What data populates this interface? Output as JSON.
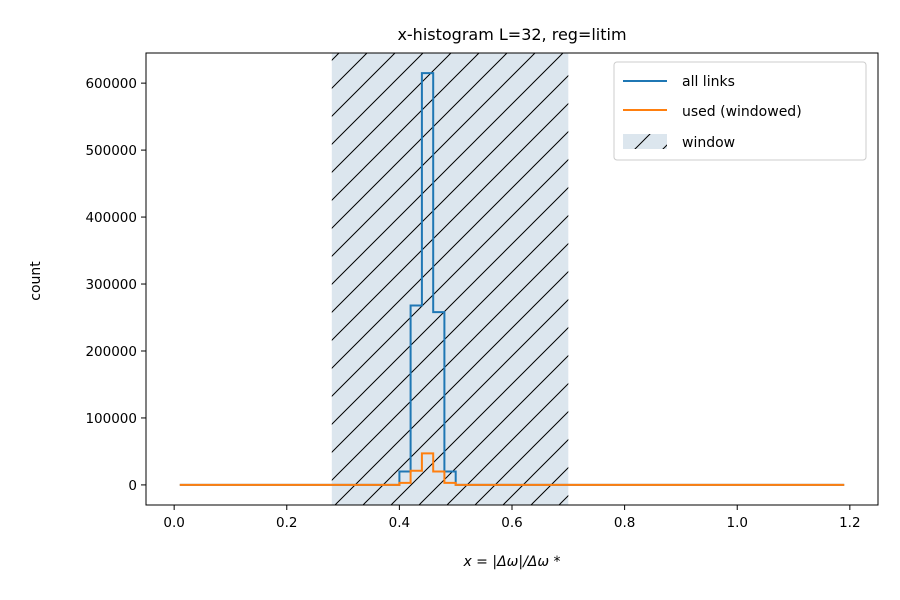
{
  "chart_data": {
    "type": "histogram",
    "title": "x-histogram L=32, reg=litim",
    "xlabel": "x = |Δω|/Δω *",
    "ylabel": "count",
    "xlim": [
      -0.05,
      1.25
    ],
    "ylim": [
      -30000,
      645000
    ],
    "xticks": [
      0.0,
      0.2,
      0.4,
      0.6,
      0.8,
      1.0,
      1.2
    ],
    "xtick_labels": [
      "0.0",
      "0.2",
      "0.4",
      "0.6",
      "0.8",
      "1.0",
      "1.2"
    ],
    "yticks": [
      0,
      100000,
      200000,
      300000,
      400000,
      500000,
      600000
    ],
    "ytick_labels": [
      "0",
      "100000",
      "200000",
      "300000",
      "400000",
      "500000",
      "600000"
    ],
    "grid": false,
    "legend_position": "top-right",
    "window": {
      "name": "window",
      "x_range": [
        0.28,
        0.7
      ],
      "color": "#dce6ee",
      "hatch": "diagonal"
    },
    "series": [
      {
        "name": "all links",
        "color": "#1f77b4",
        "steps": [
          [
            0.01,
            0
          ],
          [
            0.39,
            0
          ],
          [
            0.4,
            20000
          ],
          [
            0.42,
            268000
          ],
          [
            0.44,
            615000
          ],
          [
            0.46,
            258000
          ],
          [
            0.48,
            20000
          ],
          [
            0.5,
            0
          ],
          [
            1.19,
            0
          ]
        ]
      },
      {
        "name": "used (windowed)",
        "color": "#ff7f0e",
        "steps": [
          [
            0.01,
            0
          ],
          [
            0.39,
            0
          ],
          [
            0.4,
            3000
          ],
          [
            0.42,
            21000
          ],
          [
            0.44,
            47000
          ],
          [
            0.46,
            20000
          ],
          [
            0.48,
            3000
          ],
          [
            0.5,
            0
          ],
          [
            1.19,
            0
          ]
        ]
      }
    ]
  }
}
